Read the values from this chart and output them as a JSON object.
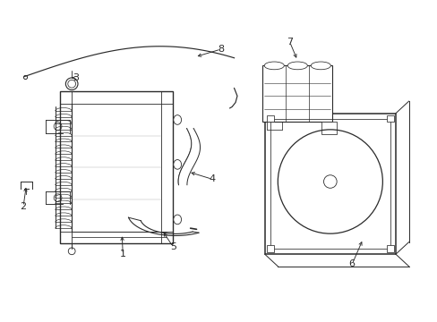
{
  "background_color": "#ffffff",
  "line_color": "#2a2a2a",
  "figsize": [
    4.89,
    3.6
  ],
  "dpi": 100,
  "xlim": [
    0,
    10.0
  ],
  "ylim": [
    0,
    7.4
  ]
}
